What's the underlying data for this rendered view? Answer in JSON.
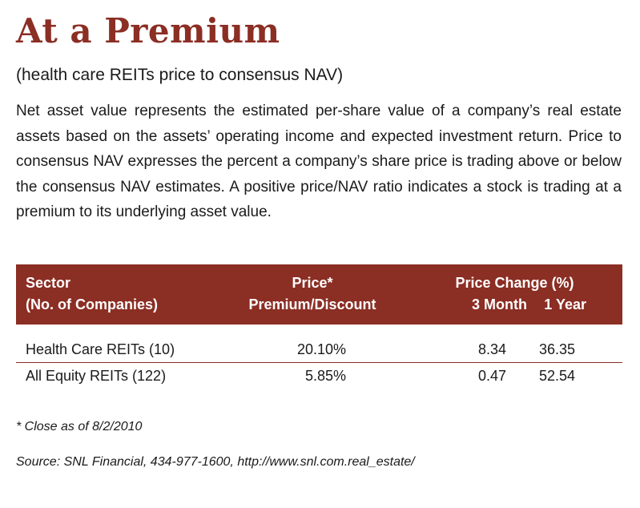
{
  "title": "At a Premium",
  "subtitle": "(health care REITs price to consensus NAV)",
  "description": "Net asset value represents the estimated per-share value of a company’s real estate assets based on the assets’ operating income and expected investment return. Price to consensus NAV expresses the percent a company’s share price is trading above or below the consensus NAV estimates. A positive price/NAV ratio indicates a stock is trading at a premium to its underlying asset value.",
  "table": {
    "headers": {
      "sector_line1": "Sector",
      "sector_line2": "(No. of Companies)",
      "price_line1": "Price*",
      "price_line2": "Premium/Discount",
      "change_group": "Price Change (%)",
      "three_month": "3 Month",
      "one_year": "1 Year"
    },
    "rows": [
      {
        "sector": "Health Care REITs (10)",
        "premium": "20.10%",
        "three_month": "8.34",
        "one_year": "36.35"
      },
      {
        "sector": "All Equity REITs (122)",
        "premium": "5.85%",
        "three_month": "0.47",
        "one_year": "52.54"
      }
    ]
  },
  "footnote": "* Close as of 8/2/2010",
  "source": "Source: SNL Financial, 434-977-1600, http://www.snl.com.real_estate/",
  "colors": {
    "accent": "#8b2e24",
    "text": "#1a1a1a",
    "header_text": "#ffffff"
  }
}
